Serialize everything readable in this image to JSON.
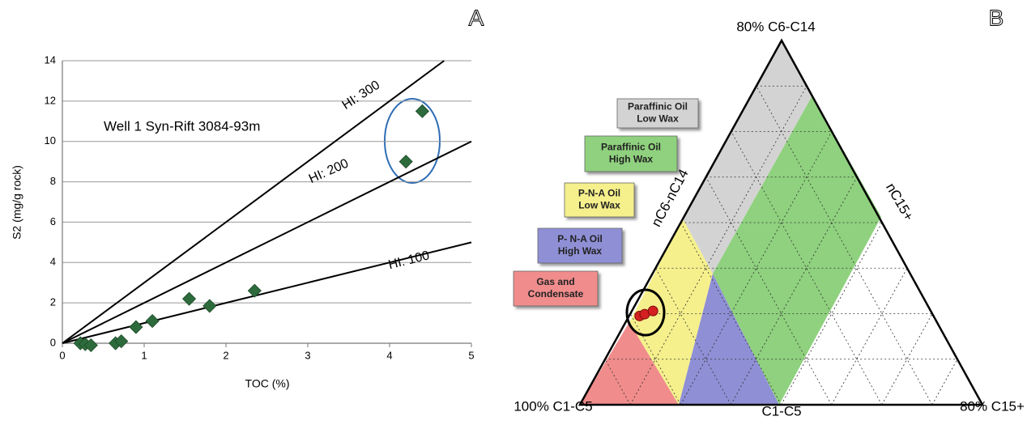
{
  "chart_data": [
    {
      "type": "scatter",
      "panel_label": "A",
      "annotation": "Well 1 Syn-Rift 3084-93m",
      "xlabel": "TOC (%)",
      "ylabel": "S2 (mg/g rock)",
      "xlim": [
        0,
        5
      ],
      "ylim": [
        0,
        14
      ],
      "xticks": [
        0,
        1,
        2,
        3,
        4,
        5
      ],
      "yticks": [
        0,
        2,
        4,
        6,
        8,
        10,
        12,
        14
      ],
      "grid": true,
      "color": "#2d6b3c",
      "x": [
        0.22,
        0.28,
        0.35,
        0.65,
        0.72,
        0.9,
        1.1,
        1.55,
        1.8,
        2.35,
        4.2,
        4.4
      ],
      "y": [
        0.0,
        -0.05,
        -0.1,
        0.0,
        0.1,
        0.8,
        1.1,
        2.2,
        1.85,
        2.6,
        9.0,
        11.5
      ],
      "reference_lines": [
        {
          "label": "HI: 300",
          "slope": 3
        },
        {
          "label": "HI: 200",
          "slope": 2
        },
        {
          "label": "HI: 100",
          "slope": 1
        }
      ]
    },
    {
      "type": "ternary",
      "panel_label": "B",
      "scale_max": 80,
      "apex_label": "80% C6-C14",
      "left_label": "100% C1-C5",
      "right_label": "80% C15+",
      "bottom_label": "C1-C5",
      "left_edge_label": "nC6-nC14",
      "right_edge_label": "nC15+",
      "legend": [
        {
          "name": [
            "Paraffinic Oil",
            "Low Wax"
          ],
          "color": "#d3d3d3"
        },
        {
          "name": [
            "Paraffinic Oil",
            "High Wax"
          ],
          "color": "#8fd17e"
        },
        {
          "name": [
            "P-N-A Oil",
            "Low Wax"
          ],
          "color": "#f5f08c"
        },
        {
          "name": [
            "P- N-A Oil",
            "High Wax"
          ],
          "color": "#8f8fd6"
        },
        {
          "name": [
            "Gas and",
            "Condensate"
          ],
          "color": "#f08c8c"
        }
      ],
      "points": {
        "color": "#d42020",
        "c6_c14": [
          19.5,
          19.9,
          20.6
        ],
        "c15": [
          2.1,
          2.9,
          4.2
        ]
      }
    }
  ]
}
